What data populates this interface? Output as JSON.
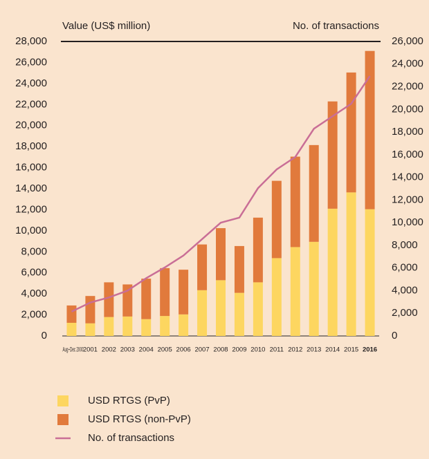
{
  "chart_data": {
    "type": "bar",
    "y_label": "Value (US$ million)",
    "y2_label": "No. of transactions",
    "categories": [
      "Aug−Dec 2000",
      "2001",
      "2002",
      "2003",
      "2004",
      "2005",
      "2006",
      "2007",
      "2008",
      "2009",
      "2010",
      "2011",
      "2012",
      "2013",
      "2014",
      "2015",
      "2016"
    ],
    "series": [
      {
        "name": "USD RTGS (PvP)",
        "type": "bar",
        "color": "#fdd660",
        "values": [
          1250,
          1200,
          1800,
          1850,
          1600,
          1900,
          2050,
          4350,
          5300,
          4100,
          5100,
          7400,
          8450,
          8950,
          12100,
          13650,
          12050
        ]
      },
      {
        "name": "USD RTGS (non-PvP)",
        "type": "bar",
        "color": "#e17a3c",
        "values": [
          1650,
          2600,
          3300,
          3050,
          3850,
          4550,
          4250,
          4350,
          4950,
          4450,
          6150,
          7350,
          8600,
          9200,
          10200,
          11400,
          15050
        ]
      },
      {
        "name": "No. of transactions",
        "type": "line",
        "axis": "y2",
        "color": "#c96e96",
        "values": [
          2150,
          2950,
          3400,
          4000,
          5100,
          6050,
          7100,
          8550,
          10000,
          10450,
          13050,
          14700,
          15800,
          18300,
          19400,
          20500,
          22950
        ]
      }
    ],
    "ylim": [
      0,
      28000
    ],
    "yticks": [
      0,
      {
        "value": 2000,
        "label": "2,000"
      },
      {
        "value": 4000,
        "label": "4,000"
      },
      {
        "value": 6000,
        "label": "6,000"
      },
      {
        "value": 8000,
        "label": "8,000"
      },
      {
        "value": 10000,
        "label": "10,000"
      },
      {
        "value": 12000,
        "label": "12,000"
      },
      {
        "value": 14000,
        "label": "14,000"
      },
      {
        "value": 16000,
        "label": "16,000"
      },
      {
        "value": 18000,
        "label": "18,000"
      },
      {
        "value": 20000,
        "label": "20,000"
      },
      {
        "value": 22000,
        "label": "22,000"
      },
      {
        "value": 24000,
        "label": "24,000"
      },
      {
        "value": 26000,
        "label": "26,000"
      },
      {
        "value": 28000,
        "label": "28,000"
      }
    ],
    "y2lim": [
      0,
      26000
    ],
    "y2ticks": [
      0,
      {
        "value": 2000,
        "label": "2,000"
      },
      {
        "value": 4000,
        "label": "4,000"
      },
      {
        "value": 6000,
        "label": "6,000"
      },
      {
        "value": 8000,
        "label": "8,000"
      },
      {
        "value": 10000,
        "label": "10,000"
      },
      {
        "value": 12000,
        "label": "12,000"
      },
      {
        "value": 14000,
        "label": "14,000"
      },
      {
        "value": 16000,
        "label": "16,000"
      },
      {
        "value": 18000,
        "label": "18,000"
      },
      {
        "value": 20000,
        "label": "20,000"
      },
      {
        "value": 22000,
        "label": "22,000"
      },
      {
        "value": 24000,
        "label": "24,000"
      },
      {
        "value": 26000,
        "label": "26,000"
      }
    ],
    "stacked": true,
    "grid": false,
    "legend": "bottom"
  }
}
